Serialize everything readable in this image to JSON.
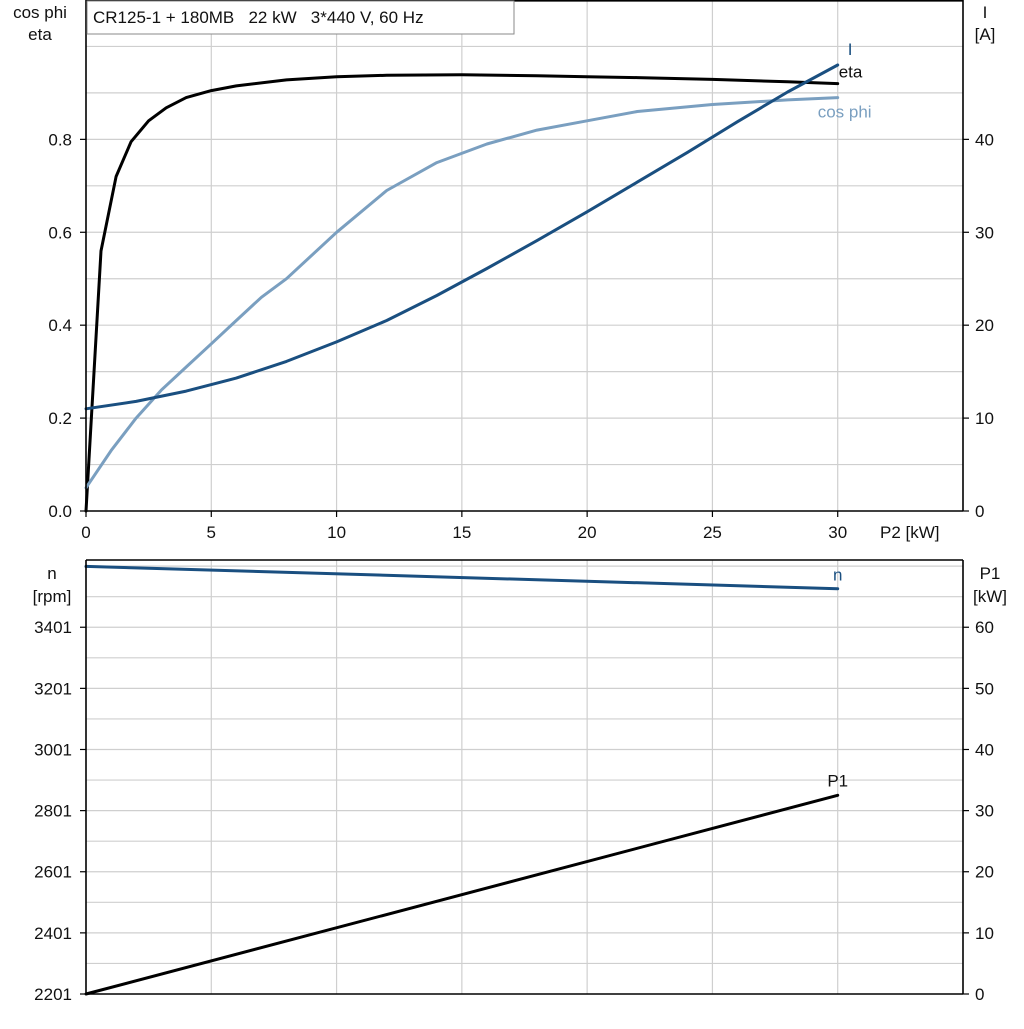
{
  "chart_data": [
    {
      "type": "line",
      "title": "CR125-1 + 180MB   22 kW   3*440 V, 60 Hz",
      "xlabel": "P2 [kW]",
      "xlim": [
        0,
        35
      ],
      "xticks": [
        "0",
        "5",
        "10",
        "15",
        "20",
        "25",
        "30"
      ],
      "xtick_values": [
        0,
        5,
        10,
        15,
        20,
        25,
        30
      ],
      "y_left": {
        "label_lines": [
          "cos phi",
          "eta"
        ],
        "lim": [
          0,
          1.1
        ],
        "ticks": [
          "0.0",
          "0.2",
          "0.4",
          "0.6",
          "0.8"
        ],
        "tick_values": [
          0,
          0.2,
          0.4,
          0.6,
          0.8
        ]
      },
      "y_right": {
        "label_lines": [
          "I",
          "[A]"
        ],
        "lim": [
          0,
          55
        ],
        "ticks": [
          "0",
          "10",
          "20",
          "30",
          "40"
        ],
        "tick_values": [
          0,
          10,
          20,
          30,
          40
        ]
      },
      "grid": true,
      "series": [
        {
          "name": "eta",
          "axis": "left",
          "color": "#000000",
          "x": [
            0,
            0.6,
            1.2,
            1.8,
            2.5,
            3.2,
            4,
            5,
            6,
            8,
            10,
            12,
            15,
            18,
            20,
            22,
            25,
            28,
            30
          ],
          "y": [
            0.0,
            0.56,
            0.72,
            0.795,
            0.84,
            0.868,
            0.89,
            0.905,
            0.915,
            0.928,
            0.935,
            0.938,
            0.939,
            0.937,
            0.935,
            0.933,
            0.929,
            0.924,
            0.92
          ]
        },
        {
          "name": "cos phi",
          "axis": "left",
          "color": "#7a9fc0",
          "x": [
            0,
            1,
            2,
            3,
            4,
            5,
            6,
            7,
            8,
            10,
            12,
            14,
            16,
            18,
            20,
            22,
            25,
            28,
            30
          ],
          "y": [
            0.05,
            0.13,
            0.2,
            0.26,
            0.31,
            0.36,
            0.41,
            0.46,
            0.5,
            0.6,
            0.69,
            0.75,
            0.79,
            0.82,
            0.84,
            0.86,
            0.875,
            0.885,
            0.89
          ]
        },
        {
          "name": "I",
          "axis": "right",
          "color": "#1a4f80",
          "x": [
            0,
            2,
            4,
            6,
            8,
            10,
            12,
            14,
            16,
            18,
            20,
            22,
            24,
            26,
            28,
            30
          ],
          "y": [
            11.0,
            11.8,
            12.9,
            14.3,
            16.1,
            18.2,
            20.5,
            23.2,
            26.1,
            29.1,
            32.2,
            35.4,
            38.6,
            41.9,
            45.1,
            48.0
          ]
        }
      ]
    },
    {
      "type": "line",
      "xlim": [
        0,
        35
      ],
      "y_left": {
        "label_lines": [
          "n",
          "[rpm]"
        ],
        "lim": [
          2201,
          3621
        ],
        "ticks": [
          "2201",
          "2401",
          "2601",
          "2801",
          "3001",
          "3201",
          "3401"
        ],
        "tick_values": [
          2201,
          2401,
          2601,
          2801,
          3001,
          3201,
          3401
        ]
      },
      "y_right": {
        "label_lines": [
          "P1",
          "[kW]"
        ],
        "lim": [
          0,
          71
        ],
        "ticks": [
          "0",
          "10",
          "20",
          "30",
          "40",
          "50",
          "60"
        ],
        "tick_values": [
          0,
          10,
          20,
          30,
          40,
          50,
          60
        ]
      },
      "grid": true,
      "series": [
        {
          "name": "n",
          "axis": "left",
          "color": "#1a4f80",
          "x": [
            0,
            30
          ],
          "y": [
            3600,
            3527
          ]
        },
        {
          "name": "P1",
          "axis": "right",
          "color": "#000000",
          "x": [
            0,
            30
          ],
          "y": [
            0,
            32.5
          ]
        }
      ]
    }
  ]
}
